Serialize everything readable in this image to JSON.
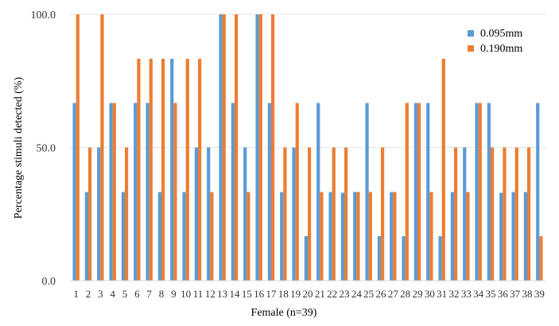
{
  "chart_data": {
    "type": "bar",
    "xlabel": "Female (n=39)",
    "ylabel": "Percentage stimuli detected (%)",
    "ylim": [
      0,
      100
    ],
    "yticks": [
      "0.0",
      "50.0",
      "100.0"
    ],
    "ytick_values": [
      0,
      50,
      100
    ],
    "grid": true,
    "legend_position": "top-right",
    "categories": [
      "1",
      "2",
      "3",
      "4",
      "5",
      "6",
      "7",
      "8",
      "9",
      "10",
      "11",
      "12",
      "13",
      "14",
      "15",
      "16",
      "17",
      "18",
      "19",
      "20",
      "21",
      "22",
      "23",
      "24",
      "25",
      "26",
      "27",
      "28",
      "29",
      "30",
      "31",
      "32",
      "33",
      "34",
      "35",
      "36",
      "37",
      "38",
      "39"
    ],
    "series": [
      {
        "name": "0.095mm",
        "color": "#5b9bd5",
        "values": [
          66.7,
          33.3,
          50,
          66.7,
          33.3,
          66.7,
          66.7,
          33.3,
          83.3,
          33.3,
          50,
          50,
          100,
          66.7,
          50,
          100,
          66.7,
          33.3,
          50,
          16.7,
          66.7,
          33.3,
          33,
          33.3,
          66.7,
          16.7,
          33.3,
          16.7,
          66.7,
          66.7,
          16.7,
          33.3,
          50,
          66.7,
          66.7,
          33,
          33.3,
          33.3,
          66.7
        ]
      },
      {
        "name": "0.190mm",
        "color": "#ed7d31",
        "values": [
          100,
          50,
          100,
          66.7,
          50,
          83.3,
          83.3,
          83.3,
          66.7,
          83.3,
          83.3,
          33.3,
          100,
          100,
          33.3,
          100,
          100,
          50,
          66.7,
          50,
          33.3,
          50,
          50,
          33.3,
          33.3,
          50,
          33.3,
          66.7,
          66.7,
          33.3,
          83.3,
          50,
          33.3,
          66.7,
          50,
          50,
          50,
          50,
          16.7
        ]
      }
    ]
  }
}
